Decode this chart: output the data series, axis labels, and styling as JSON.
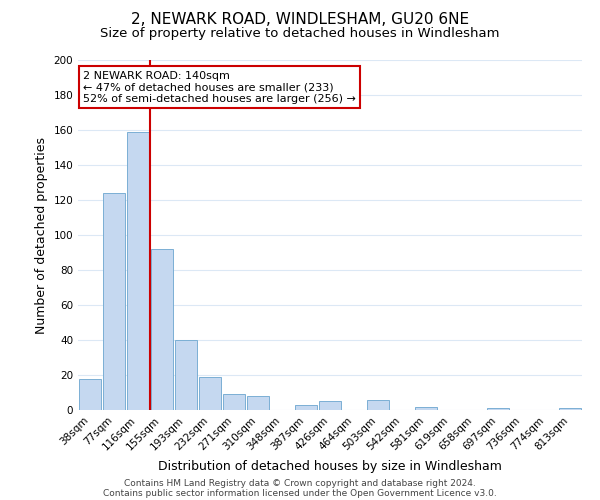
{
  "title": "2, NEWARK ROAD, WINDLESHAM, GU20 6NE",
  "subtitle": "Size of property relative to detached houses in Windlesham",
  "xlabel": "Distribution of detached houses by size in Windlesham",
  "ylabel": "Number of detached properties",
  "categories": [
    "38sqm",
    "77sqm",
    "116sqm",
    "155sqm",
    "193sqm",
    "232sqm",
    "271sqm",
    "310sqm",
    "348sqm",
    "387sqm",
    "426sqm",
    "464sqm",
    "503sqm",
    "542sqm",
    "581sqm",
    "619sqm",
    "658sqm",
    "697sqm",
    "736sqm",
    "774sqm",
    "813sqm"
  ],
  "values": [
    18,
    124,
    159,
    92,
    40,
    19,
    9,
    8,
    0,
    3,
    5,
    0,
    6,
    0,
    2,
    0,
    0,
    1,
    0,
    0,
    1
  ],
  "bar_color": "#c5d8f0",
  "bar_edge_color": "#7bafd4",
  "vline_color": "#cc0000",
  "ylim": [
    0,
    200
  ],
  "yticks": [
    0,
    20,
    40,
    60,
    80,
    100,
    120,
    140,
    160,
    180,
    200
  ],
  "annotation_title": "2 NEWARK ROAD: 140sqm",
  "annotation_line1": "← 47% of detached houses are smaller (233)",
  "annotation_line2": "52% of semi-detached houses are larger (256) →",
  "footer1": "Contains HM Land Registry data © Crown copyright and database right 2024.",
  "footer2": "Contains public sector information licensed under the Open Government Licence v3.0.",
  "background_color": "#ffffff",
  "grid_color": "#dce8f5",
  "annotation_box_edge": "#cc0000",
  "title_fontsize": 11,
  "subtitle_fontsize": 9.5,
  "axis_label_fontsize": 9,
  "tick_fontsize": 7.5,
  "footer_fontsize": 6.5,
  "ann_fontsize": 8.0
}
